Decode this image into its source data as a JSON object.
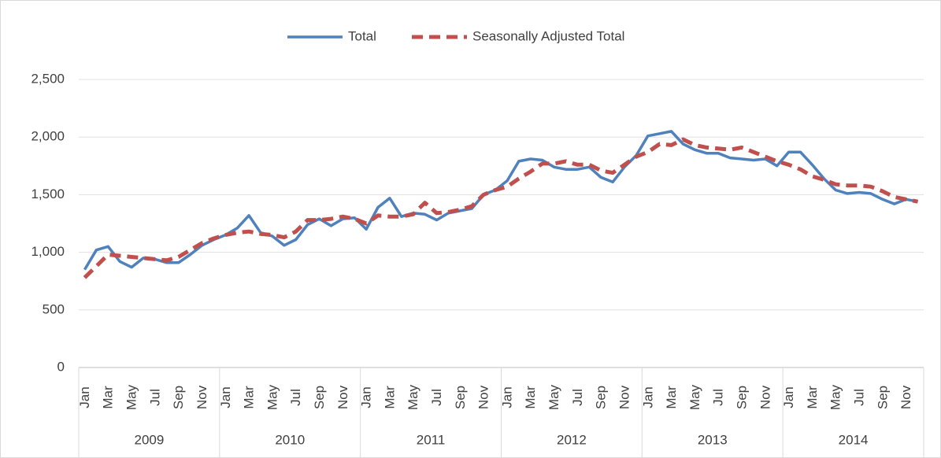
{
  "chart_data": {
    "type": "line",
    "categories": [
      "Jan",
      null,
      "Mar",
      null,
      "May",
      null,
      "Jul",
      null,
      "Sep",
      null,
      "Nov",
      null,
      "Jan",
      null,
      "Mar",
      null,
      "May",
      null,
      "Jul",
      null,
      "Sep",
      null,
      "Nov",
      null,
      "Jan",
      null,
      "Mar",
      null,
      "May",
      null,
      "Jul",
      null,
      "Sep",
      null,
      "Nov",
      null,
      "Jan",
      null,
      "Mar",
      null,
      "May",
      null,
      "Jul",
      null,
      "Sep",
      null,
      "Nov",
      null,
      "Jan",
      null,
      "Mar",
      null,
      "May",
      null,
      "Jul",
      null,
      "Sep",
      null,
      "Nov",
      null,
      "Jan",
      null,
      "Mar",
      null,
      "May",
      null,
      "Jul",
      null,
      "Sep",
      null,
      "Nov",
      null
    ],
    "groups": [
      "2009",
      "2010",
      "2011",
      "2012",
      "2013",
      "2014"
    ],
    "series": [
      {
        "name": "Total",
        "color": "#4f81bd",
        "dash": false,
        "values": [
          850,
          1020,
          1050,
          920,
          870,
          950,
          940,
          910,
          910,
          980,
          1060,
          1110,
          1150,
          1210,
          1320,
          1170,
          1140,
          1060,
          1110,
          1240,
          1290,
          1230,
          1290,
          1300,
          1200,
          1390,
          1470,
          1310,
          1340,
          1330,
          1280,
          1340,
          1360,
          1380,
          1500,
          1540,
          1620,
          1790,
          1810,
          1800,
          1740,
          1720,
          1720,
          1740,
          1650,
          1610,
          1740,
          1840,
          2010,
          2030,
          2050,
          1940,
          1890,
          1860,
          1860,
          1820,
          1810,
          1800,
          1810,
          1750,
          1870,
          1870,
          1760,
          1640,
          1540,
          1510,
          1520,
          1510,
          1460,
          1420,
          1460,
          1440
        ]
      },
      {
        "name": "Seasonally Adjusted Total",
        "color": "#c0504d",
        "dash": true,
        "values": [
          780,
          880,
          980,
          970,
          960,
          950,
          940,
          930,
          960,
          1020,
          1080,
          1120,
          1150,
          1170,
          1180,
          1160,
          1150,
          1130,
          1180,
          1280,
          1280,
          1290,
          1310,
          1290,
          1250,
          1320,
          1310,
          1310,
          1330,
          1430,
          1340,
          1350,
          1370,
          1400,
          1500,
          1540,
          1570,
          1640,
          1700,
          1770,
          1770,
          1790,
          1760,
          1760,
          1710,
          1690,
          1760,
          1830,
          1870,
          1940,
          1930,
          1980,
          1930,
          1910,
          1900,
          1890,
          1910,
          1870,
          1830,
          1790,
          1760,
          1720,
          1660,
          1630,
          1590,
          1580,
          1580,
          1570,
          1530,
          1480,
          1460,
          1440
        ]
      }
    ],
    "ylim": [
      0,
      2500
    ],
    "yticks": [
      0,
      500,
      {
        "value": 1000,
        "label": "1,000"
      },
      {
        "value": 1500,
        "label": "1,500"
      },
      {
        "value": 2000,
        "label": "2,000"
      },
      {
        "value": 2500,
        "label": "2,500"
      }
    ],
    "grid": true,
    "legend": "top"
  }
}
